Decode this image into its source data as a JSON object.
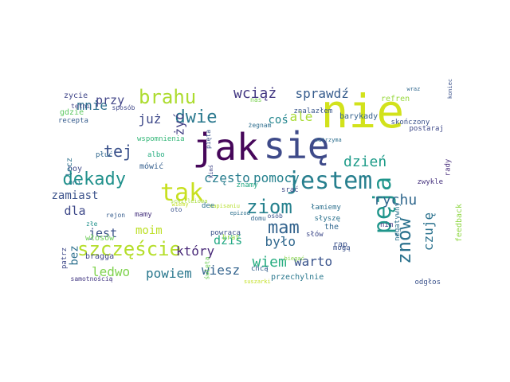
{
  "words": [
    {
      "text": "nie",
      "color": "#d2e21b"
    },
    {
      "text": "jak",
      "color": "#46075a"
    },
    {
      "text": "się",
      "color": "#3e4a89"
    },
    {
      "text": "jestem",
      "color": "#277f8e"
    },
    {
      "text": "tak",
      "color": "#c8e020"
    },
    {
      "text": "szczęście",
      "color": "#b5de2b"
    },
    {
      "text": "brahu",
      "color": "#addc30"
    },
    {
      "text": "dekady",
      "color": "#21918c"
    },
    {
      "text": "ziom",
      "color": "#26818e"
    },
    {
      "text": "pęja",
      "color": "#1f958b"
    },
    {
      "text": "znów",
      "color": "#2c728e"
    },
    {
      "text": "mam",
      "color": "#33638d"
    },
    {
      "text": "dwie",
      "color": "#2a788e"
    },
    {
      "text": "tej",
      "color": "#3b528b"
    },
    {
      "text": "rychu",
      "color": "#31688e"
    },
    {
      "text": "wiem",
      "color": "#27ad81"
    },
    {
      "text": "dzień",
      "color": "#1e9c89"
    },
    {
      "text": "wciąż",
      "color": "#443983"
    },
    {
      "text": "sprawdź",
      "color": "#365c8d"
    },
    {
      "text": "mnie",
      "color": "#2d708e"
    },
    {
      "text": "już",
      "color": "#3e4989"
    },
    {
      "text": "coś",
      "color": "#24868e"
    },
    {
      "text": "ale",
      "color": "#a8db34"
    },
    {
      "text": "przy",
      "color": "#414487"
    },
    {
      "text": "jest",
      "color": "#3b528b"
    },
    {
      "text": "moim",
      "color": "#bddf26"
    },
    {
      "text": "który",
      "color": "#482878"
    },
    {
      "text": "dziś",
      "color": "#22a884"
    },
    {
      "text": "było",
      "color": "#31688e"
    },
    {
      "text": "warto",
      "color": "#3a548c"
    },
    {
      "text": "czuję",
      "color": "#2c728e"
    },
    {
      "text": "ledwo",
      "color": "#7fd34e"
    },
    {
      "text": "powiem",
      "color": "#2a788e"
    },
    {
      "text": "wiesz",
      "color": "#33638d"
    },
    {
      "text": "często",
      "color": "#287d8e"
    },
    {
      "text": "pomocy",
      "color": "#26828e"
    },
    {
      "text": "żyć",
      "color": "#423f85"
    },
    {
      "text": "zamiast",
      "color": "#3b528b"
    },
    {
      "text": "dla",
      "color": "#3e4989"
    },
    {
      "text": "bez",
      "color": "#2d708e"
    },
    {
      "text": "zycie",
      "color": "#404688"
    },
    {
      "text": "gdzie",
      "color": "#5ec962"
    },
    {
      "text": "tętni",
      "color": "#414487"
    },
    {
      "text": "sposób",
      "color": "#3f4788"
    },
    {
      "text": "recepta",
      "color": "#365c8d"
    },
    {
      "text": "wspomnienia",
      "color": "#35b779"
    },
    {
      "text": "albo",
      "color": "#27ad81"
    },
    {
      "text": "boy",
      "color": "#3e4989"
    },
    {
      "text": "mówić",
      "color": "#355f8d"
    },
    {
      "text": "płuć",
      "color": "#31688e"
    },
    {
      "text": "lecz",
      "color": "#2c728e"
    },
    {
      "text": "oni",
      "color": "#2a788e"
    },
    {
      "text": "mamy",
      "color": "#46327e"
    },
    {
      "text": "rejon",
      "color": "#365c8d"
    },
    {
      "text": "złe",
      "color": "#21918c"
    },
    {
      "text": "włosów",
      "color": "#6ece58"
    },
    {
      "text": "bragga",
      "color": "#404688"
    },
    {
      "text": "patrz",
      "color": "#3e4989"
    },
    {
      "text": "samotnością",
      "color": "#443983"
    },
    {
      "text": "pięta",
      "color": "#3b528b"
    },
    {
      "text": "nas",
      "color": "#7ad151"
    },
    {
      "text": "znalazłem",
      "color": "#39568c"
    },
    {
      "text": "barykady",
      "color": "#34618d"
    },
    {
      "text": "refren",
      "color": "#98d83e"
    },
    {
      "text": "wraz",
      "color": "#31688e"
    },
    {
      "text": "skończony",
      "color": "#3b528b"
    },
    {
      "text": "koniec",
      "color": "#3b528b"
    },
    {
      "text": "postaraj",
      "color": "#3e4989"
    },
    {
      "text": "zwykle",
      "color": "#46327e"
    },
    {
      "text": "rady",
      "color": "#472d7b"
    },
    {
      "text": "zatrzyma",
      "color": "#2e6e8e"
    },
    {
      "text": "żegnam",
      "color": "#2e6e8e"
    },
    {
      "text": "kimś",
      "color": "#404688"
    },
    {
      "text": "napisaniu",
      "color": "#b5de2b"
    },
    {
      "text": "schilleiowa",
      "color": "#a5db36"
    },
    {
      "text": "dee",
      "color": "#2c728e"
    },
    {
      "text": "domu",
      "color": "#32658e"
    },
    {
      "text": "osób",
      "color": "#3b528b"
    },
    {
      "text": "srać",
      "color": "#3e4989"
    },
    {
      "text": "łamiemy",
      "color": "#2d708e"
    },
    {
      "text": "znamy",
      "color": "#22a884"
    },
    {
      "text": "wiemy",
      "color": "#c2df23"
    },
    {
      "text": "epizod",
      "color": "#2d708e"
    },
    {
      "text": "powraca",
      "color": "#3b528b"
    },
    {
      "text": "brat",
      "color": "#93d741"
    },
    {
      "text": "oto",
      "color": "#3b528b"
    },
    {
      "text": "święta",
      "color": "#6ece58"
    },
    {
      "text": "słyszę",
      "color": "#2c728e"
    },
    {
      "text": "the",
      "color": "#31688e"
    },
    {
      "text": "słów",
      "color": "#3e4989"
    },
    {
      "text": "nim",
      "color": "#453882"
    },
    {
      "text": "rap",
      "color": "#3b528b"
    },
    {
      "text": "mogą",
      "color": "#3b528b"
    },
    {
      "text": "chcą",
      "color": "#35608d"
    },
    {
      "text": "biegać",
      "color": "#86d549"
    },
    {
      "text": "suszarki",
      "color": "#c2df23"
    },
    {
      "text": "przechylnie",
      "color": "#2a788e"
    },
    {
      "text": "negatywny",
      "color": "#2c728e"
    },
    {
      "text": "feedback",
      "color": "#8fd744"
    },
    {
      "text": "odgłos",
      "color": "#3b528b"
    }
  ]
}
